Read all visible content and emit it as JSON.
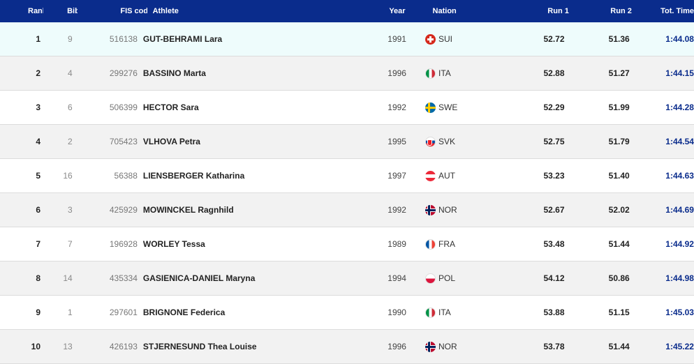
{
  "header": {
    "rank": "Rank",
    "bib": "Bib",
    "fis_code": "FIS code",
    "athlete": "Athlete",
    "year": "Year",
    "nation": "Nation",
    "run1": "Run 1",
    "run2": "Run 2",
    "total": "Tot. Time"
  },
  "rows": [
    {
      "rank": "1",
      "bib": "9",
      "fis_code": "516138",
      "athlete": "GUT-BEHRAMI Lara",
      "year": "1991",
      "nation": "SUI",
      "flag_icon": "flag-switzerland-icon",
      "run1": "52.72",
      "run2": "51.36",
      "total": "1:44.08"
    },
    {
      "rank": "2",
      "bib": "4",
      "fis_code": "299276",
      "athlete": "BASSINO Marta",
      "year": "1996",
      "nation": "ITA",
      "flag_icon": "flag-italy-icon",
      "run1": "52.88",
      "run2": "51.27",
      "total": "1:44.15"
    },
    {
      "rank": "3",
      "bib": "6",
      "fis_code": "506399",
      "athlete": "HECTOR Sara",
      "year": "1992",
      "nation": "SWE",
      "flag_icon": "flag-sweden-icon",
      "run1": "52.29",
      "run2": "51.99",
      "total": "1:44.28"
    },
    {
      "rank": "4",
      "bib": "2",
      "fis_code": "705423",
      "athlete": "VLHOVA Petra",
      "year": "1995",
      "nation": "SVK",
      "flag_icon": "flag-slovakia-icon",
      "run1": "52.75",
      "run2": "51.79",
      "total": "1:44.54"
    },
    {
      "rank": "5",
      "bib": "16",
      "fis_code": "56388",
      "athlete": "LIENSBERGER Katharina",
      "year": "1997",
      "nation": "AUT",
      "flag_icon": "flag-austria-icon",
      "run1": "53.23",
      "run2": "51.40",
      "total": "1:44.63"
    },
    {
      "rank": "6",
      "bib": "3",
      "fis_code": "425929",
      "athlete": "MOWINCKEL Ragnhild",
      "year": "1992",
      "nation": "NOR",
      "flag_icon": "flag-norway-icon",
      "run1": "52.67",
      "run2": "52.02",
      "total": "1:44.69"
    },
    {
      "rank": "7",
      "bib": "7",
      "fis_code": "196928",
      "athlete": "WORLEY Tessa",
      "year": "1989",
      "nation": "FRA",
      "flag_icon": "flag-france-icon",
      "run1": "53.48",
      "run2": "51.44",
      "total": "1:44.92"
    },
    {
      "rank": "8",
      "bib": "14",
      "fis_code": "435334",
      "athlete": "GASIENICA-DANIEL Maryna",
      "year": "1994",
      "nation": "POL",
      "flag_icon": "flag-poland-icon",
      "run1": "54.12",
      "run2": "50.86",
      "total": "1:44.98"
    },
    {
      "rank": "9",
      "bib": "1",
      "fis_code": "297601",
      "athlete": "BRIGNONE Federica",
      "year": "1990",
      "nation": "ITA",
      "flag_icon": "flag-italy-icon",
      "run1": "53.88",
      "run2": "51.15",
      "total": "1:45.03"
    },
    {
      "rank": "10",
      "bib": "13",
      "fis_code": "426193",
      "athlete": "STJERNESUND Thea Louise",
      "year": "1996",
      "nation": "NOR",
      "flag_icon": "flag-norway-icon",
      "run1": "53.78",
      "run2": "51.44",
      "total": "1:45.22"
    }
  ],
  "colors": {
    "header_bg": "#0a2c8c",
    "total_time": "#0a2c8c",
    "row_alt": "#f2f2f2",
    "row_highlight": "#eefcfc"
  }
}
